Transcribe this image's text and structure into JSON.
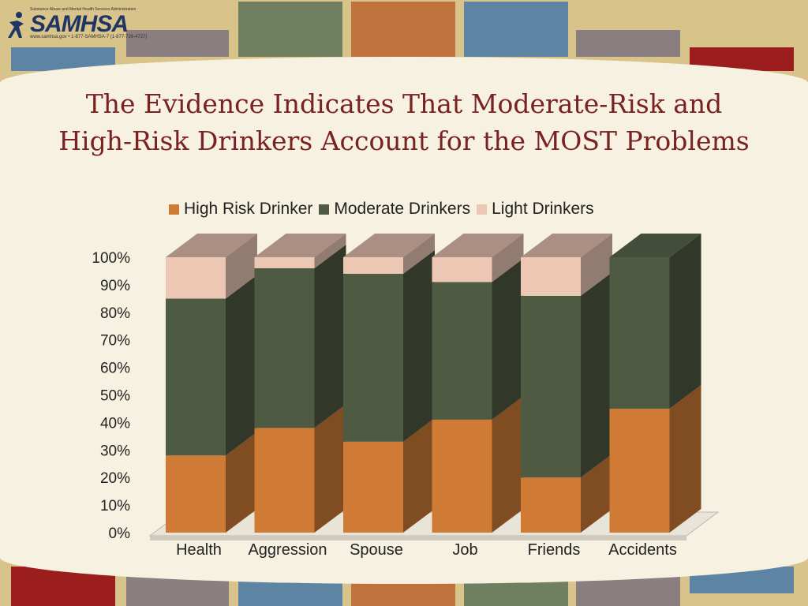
{
  "header": {
    "logo_text": "SAMHSA",
    "logo_top_line": "Substance Abuse and Mental Health Services Administration",
    "logo_tag": "www.samhsa.gov • 1-877-SAMHSA-7 (1-877-726-4727)"
  },
  "slide": {
    "title_line1": "The Evidence Indicates That Moderate-Risk and",
    "title_line2": "High-Risk Drinkers Account for the MOST Problems"
  },
  "colors": {
    "high_risk": "#cf7a35",
    "moderate": "#4f5a43",
    "light": "#ecc7b4",
    "title": "#7a2222"
  },
  "chart_data": {
    "type": "bar",
    "stacked": true,
    "percent_stacked": true,
    "three_d": true,
    "categories": [
      "Health",
      "Aggression",
      "Spouse",
      "Job",
      "Friends",
      "Accidents"
    ],
    "series": [
      {
        "name": "High Risk Drinker",
        "values": [
          28,
          38,
          33,
          41,
          20,
          45
        ]
      },
      {
        "name": "Moderate Drinkers",
        "values": [
          57,
          58,
          61,
          50,
          66,
          55
        ]
      },
      {
        "name": "Light Drinkers",
        "values": [
          15,
          4,
          6,
          9,
          14,
          0
        ]
      }
    ],
    "y_ticks": [
      "0%",
      "10%",
      "20%",
      "30%",
      "40%",
      "50%",
      "60%",
      "70%",
      "80%",
      "90%",
      "100%"
    ],
    "ylim": [
      0,
      100
    ],
    "legend_position": "top",
    "grid": false
  }
}
